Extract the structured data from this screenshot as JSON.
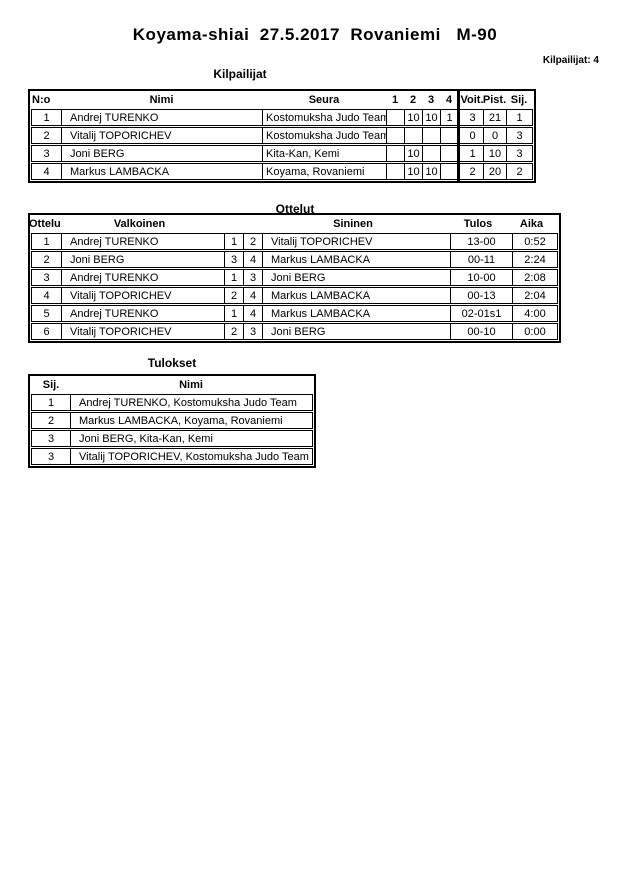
{
  "page": {
    "title": "Koyama-shiai  27.5.2017  Rovaniemi   M-90",
    "competitor_count_label": "Kilpailijat: 4"
  },
  "competitors": {
    "heading": "Kilpailijat",
    "headers": {
      "no": "N:o",
      "name": "Nimi",
      "club": "Seura",
      "r1": "1",
      "r2": "2",
      "r3": "3",
      "r4": "4",
      "wins": "Voit.",
      "points": "Pist.",
      "place": "Sij."
    },
    "rows": [
      {
        "no": "1",
        "name": "Andrej TURENKO",
        "club": "Kostomuksha Judo Team",
        "r1": "",
        "r2": "10",
        "r3": "10",
        "r4": "1",
        "wins": "3",
        "points": "21",
        "place": "1"
      },
      {
        "no": "2",
        "name": "Vitalij TOPORICHEV",
        "club": "Kostomuksha Judo Team",
        "r1": "",
        "r2": "",
        "r3": "",
        "r4": "",
        "wins": "0",
        "points": "0",
        "place": "3"
      },
      {
        "no": "3",
        "name": "Joni BERG",
        "club": "Kita-Kan, Kemi",
        "r1": "",
        "r2": "10",
        "r3": "",
        "r4": "",
        "wins": "1",
        "points": "10",
        "place": "3"
      },
      {
        "no": "4",
        "name": "Markus LAMBACKA",
        "club": "Koyama, Rovaniemi",
        "r1": "",
        "r2": "10",
        "r3": "10",
        "r4": "",
        "wins": "2",
        "points": "20",
        "place": "2"
      }
    ]
  },
  "matches": {
    "heading": "Ottelut",
    "headers": {
      "match": "Ottelu",
      "white": "Valkoinen",
      "blue": "Sininen",
      "result": "Tulos",
      "time": "Aika"
    },
    "rows": [
      {
        "match": "1",
        "white": "Andrej TURENKO",
        "white_no": "1",
        "blue_no": "2",
        "blue": "Vitalij TOPORICHEV",
        "result": "13-00",
        "time": "0:52"
      },
      {
        "match": "2",
        "white": "Joni BERG",
        "white_no": "3",
        "blue_no": "4",
        "blue": "Markus LAMBACKA",
        "result": "00-11",
        "time": "2:24"
      },
      {
        "match": "3",
        "white": "Andrej TURENKO",
        "white_no": "1",
        "blue_no": "3",
        "blue": "Joni BERG",
        "result": "10-00",
        "time": "2:08"
      },
      {
        "match": "4",
        "white": "Vitalij TOPORICHEV",
        "white_no": "2",
        "blue_no": "4",
        "blue": "Markus LAMBACKA",
        "result": "00-13",
        "time": "2:04"
      },
      {
        "match": "5",
        "white": "Andrej TURENKO",
        "white_no": "1",
        "blue_no": "4",
        "blue": "Markus LAMBACKA",
        "result": "02-01s1",
        "time": "4:00"
      },
      {
        "match": "6",
        "white": "Vitalij TOPORICHEV",
        "white_no": "2",
        "blue_no": "3",
        "blue": "Joni BERG",
        "result": "00-10",
        "time": "0:00"
      }
    ]
  },
  "results": {
    "heading": "Tulokset",
    "headers": {
      "place": "Sij.",
      "name": "Nimi"
    },
    "rows": [
      {
        "place": "1",
        "name": "Andrej TURENKO, Kostomuksha Judo Team"
      },
      {
        "place": "2",
        "name": "Markus LAMBACKA, Koyama, Rovaniemi"
      },
      {
        "place": "3",
        "name": "Joni BERG, Kita-Kan, Kemi"
      },
      {
        "place": "3",
        "name": "Vitalij TOPORICHEV, Kostomuksha Judo Team"
      }
    ]
  }
}
